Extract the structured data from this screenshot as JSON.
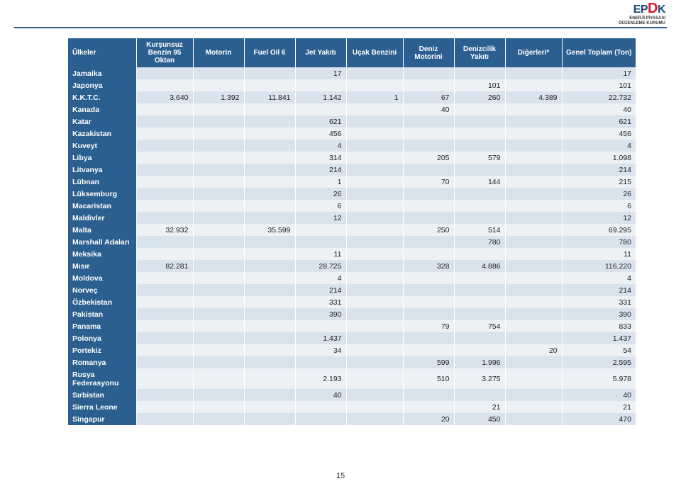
{
  "logo": {
    "main_left": "EP",
    "main_accent": "D",
    "main_right": "K",
    "sub1": "ENERJİ PİYASASI",
    "sub2": "DÜZENLEME KURUMU"
  },
  "page_number": "15",
  "table": {
    "columns": [
      "Ülkeler",
      "Kurşunsuz Benzin 95 Oktan",
      "Motorin",
      "Fuel Oil 6",
      "Jet Yakıtı",
      "Uçak Benzini",
      "Deniz Motorini",
      "Denizcilik Yakıtı",
      "Diğerleri*",
      "Genel Toplam (Ton)"
    ],
    "col_widths": [
      "12%",
      "10%",
      "9%",
      "9%",
      "9%",
      "10%",
      "9%",
      "9%",
      "10%",
      "13%"
    ],
    "rows": [
      [
        "Jamaika",
        "",
        "",
        "",
        "17",
        "",
        "",
        "",
        "",
        "17"
      ],
      [
        "Japonya",
        "",
        "",
        "",
        "",
        "",
        "",
        "101",
        "",
        "101"
      ],
      [
        "K.K.T.C.",
        "3.640",
        "1.392",
        "11.841",
        "1.142",
        "1",
        "67",
        "260",
        "4.389",
        "22.732"
      ],
      [
        "Kanada",
        "",
        "",
        "",
        "",
        "",
        "40",
        "",
        "",
        "40"
      ],
      [
        "Katar",
        "",
        "",
        "",
        "621",
        "",
        "",
        "",
        "",
        "621"
      ],
      [
        "Kazakistan",
        "",
        "",
        "",
        "456",
        "",
        "",
        "",
        "",
        "456"
      ],
      [
        "Kuveyt",
        "",
        "",
        "",
        "4",
        "",
        "",
        "",
        "",
        "4"
      ],
      [
        "Libya",
        "",
        "",
        "",
        "314",
        "",
        "205",
        "579",
        "",
        "1.098"
      ],
      [
        "Litvanya",
        "",
        "",
        "",
        "214",
        "",
        "",
        "",
        "",
        "214"
      ],
      [
        "Lübnan",
        "",
        "",
        "",
        "1",
        "",
        "70",
        "144",
        "",
        "215"
      ],
      [
        "Lüksemburg",
        "",
        "",
        "",
        "26",
        "",
        "",
        "",
        "",
        "26"
      ],
      [
        "Macaristan",
        "",
        "",
        "",
        "6",
        "",
        "",
        "",
        "",
        "6"
      ],
      [
        "Maldivler",
        "",
        "",
        "",
        "12",
        "",
        "",
        "",
        "",
        "12"
      ],
      [
        "Malta",
        "32.932",
        "",
        "35.599",
        "",
        "",
        "250",
        "514",
        "",
        "69.295"
      ],
      [
        "Marshall Adaları",
        "",
        "",
        "",
        "",
        "",
        "",
        "780",
        "",
        "780"
      ],
      [
        "Meksika",
        "",
        "",
        "",
        "11",
        "",
        "",
        "",
        "",
        "11"
      ],
      [
        "Mısır",
        "82.281",
        "",
        "",
        "28.725",
        "",
        "328",
        "4.886",
        "",
        "116.220"
      ],
      [
        "Moldova",
        "",
        "",
        "",
        "4",
        "",
        "",
        "",
        "",
        "4"
      ],
      [
        "Norveç",
        "",
        "",
        "",
        "214",
        "",
        "",
        "",
        "",
        "214"
      ],
      [
        "Özbekistan",
        "",
        "",
        "",
        "331",
        "",
        "",
        "",
        "",
        "331"
      ],
      [
        "Pakistan",
        "",
        "",
        "",
        "390",
        "",
        "",
        "",
        "",
        "390"
      ],
      [
        "Panama",
        "",
        "",
        "",
        "",
        "",
        "79",
        "754",
        "",
        "833"
      ],
      [
        "Polonya",
        "",
        "",
        "",
        "1.437",
        "",
        "",
        "",
        "",
        "1.437"
      ],
      [
        "Portekiz",
        "",
        "",
        "",
        "34",
        "",
        "",
        "",
        "20",
        "54"
      ],
      [
        "Romanya",
        "",
        "",
        "",
        "",
        "",
        "599",
        "1.996",
        "",
        "2.595"
      ],
      [
        "Rusya Federasyonu",
        "",
        "",
        "",
        "2.193",
        "",
        "510",
        "3.275",
        "",
        "5.978"
      ],
      [
        "Sırbistan",
        "",
        "",
        "",
        "40",
        "",
        "",
        "",
        "",
        "40"
      ],
      [
        "Sierra Leone",
        "",
        "",
        "",
        "",
        "",
        "",
        "21",
        "",
        "21"
      ],
      [
        "Singapur",
        "",
        "",
        "",
        "",
        "",
        "20",
        "450",
        "",
        "470"
      ]
    ]
  },
  "colors": {
    "header_bg": "#2b5f8f",
    "row_odd": "#d9e3ee",
    "row_even": "#ecf1f6",
    "header_fg": "#ffffff"
  }
}
